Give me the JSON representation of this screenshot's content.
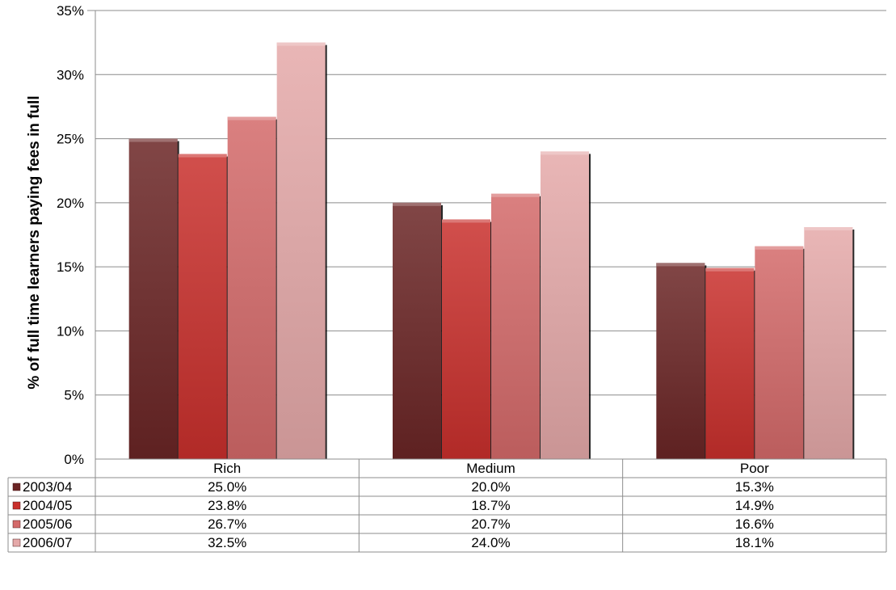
{
  "chart_data": {
    "type": "bar",
    "ylabel": "% of full time learners paying fees in full",
    "xlabel": "",
    "ylim": [
      0,
      35
    ],
    "y_ticks": [
      "0%",
      "5%",
      "10%",
      "15%",
      "20%",
      "25%",
      "30%",
      "35%"
    ],
    "y_tick_values": [
      0,
      5,
      10,
      15,
      20,
      25,
      30,
      35
    ],
    "grid": true,
    "legend": "data table below chart",
    "categories": [
      "Rich",
      "Medium",
      "Poor"
    ],
    "series": [
      {
        "name": "2003/04",
        "values": [
          25.0,
          20.0,
          15.3
        ],
        "labels": [
          "25.0%",
          "20.0%",
          "15.3%"
        ],
        "color": "#6B2525"
      },
      {
        "name": "2004/05",
        "values": [
          23.8,
          18.7,
          14.9
        ],
        "labels": [
          "23.8%",
          "18.7%",
          "14.9%"
        ],
        "color": "#C9302C"
      },
      {
        "name": "2005/06",
        "values": [
          26.7,
          20.7,
          16.6
        ],
        "labels": [
          "26.7%",
          "20.7%",
          "16.6%"
        ],
        "color": "#D46A6A"
      },
      {
        "name": "2006/07",
        "values": [
          32.5,
          24.0,
          18.1
        ],
        "labels": [
          "32.5%",
          "24.0%",
          "18.1%"
        ],
        "color": "#E5A9A9"
      }
    ]
  }
}
